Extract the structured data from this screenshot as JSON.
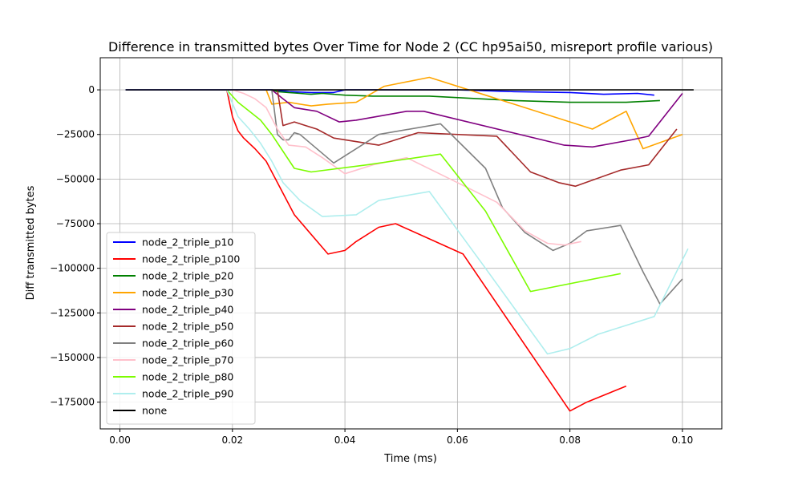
{
  "chart_data": {
    "type": "line",
    "title": "Difference in transmitted bytes Over Time for Node 2 (CC hp95ai50, misreport profile various)",
    "xlabel": "Time (ms)",
    "ylabel": "Diff transmitted bytes",
    "xlim": [
      -0.0035,
      0.107
    ],
    "ylim": [
      -190000,
      18000
    ],
    "xticks": [
      0.0,
      0.02,
      0.04,
      0.06,
      0.08,
      0.1
    ],
    "xtick_labels": [
      "0.00",
      "0.02",
      "0.04",
      "0.06",
      "0.08",
      "0.10"
    ],
    "yticks": [
      0,
      -25000,
      -50000,
      -75000,
      -100000,
      -125000,
      -150000,
      -175000
    ],
    "ytick_labels": [
      "0",
      "−25000",
      "−50000",
      "−75000",
      "−100000",
      "−125000",
      "−150000",
      "−175000"
    ],
    "grid": true,
    "legend_position": "lower-left",
    "series": [
      {
        "name": "node_2_triple_p10",
        "color": "#0000ff",
        "x": [
          0.001,
          0.027,
          0.03,
          0.034,
          0.038,
          0.04,
          0.05,
          0.06,
          0.07,
          0.08,
          0.086,
          0.092,
          0.095
        ],
        "y": [
          0,
          0,
          -1000,
          -1500,
          -1500,
          0,
          0,
          0,
          -1000,
          -1500,
          -2500,
          -2000,
          -3000
        ]
      },
      {
        "name": "node_2_triple_p100",
        "color": "#ff0000",
        "x": [
          0.019,
          0.02,
          0.021,
          0.022,
          0.024,
          0.026,
          0.031,
          0.037,
          0.04,
          0.042,
          0.046,
          0.049,
          0.061,
          0.08,
          0.083,
          0.09
        ],
        "y": [
          0,
          -15000,
          -23000,
          -27000,
          -33000,
          -40000,
          -70000,
          -92000,
          -90000,
          -85000,
          -77000,
          -75000,
          -92000,
          -180000,
          -175000,
          -166000
        ]
      },
      {
        "name": "node_2_triple_p20",
        "color": "#008000",
        "x": [
          0.027,
          0.028,
          0.03,
          0.032,
          0.034,
          0.036,
          0.04,
          0.045,
          0.055,
          0.07,
          0.08,
          0.09,
          0.096
        ],
        "y": [
          0,
          -1000,
          -1500,
          -2000,
          -2500,
          -2000,
          -3000,
          -3500,
          -3500,
          -6000,
          -7000,
          -7000,
          -6000
        ]
      },
      {
        "name": "node_2_triple_p30",
        "color": "#ffa500",
        "x": [
          0.026,
          0.027,
          0.03,
          0.034,
          0.037,
          0.042,
          0.047,
          0.055,
          0.065,
          0.084,
          0.09,
          0.093,
          0.1
        ],
        "y": [
          0,
          -8000,
          -7000,
          -9000,
          -8000,
          -7000,
          2000,
          7000,
          -3000,
          -22000,
          -12000,
          -33000,
          -25000
        ]
      },
      {
        "name": "node_2_triple_p40",
        "color": "#800080",
        "x": [
          0.027,
          0.029,
          0.031,
          0.033,
          0.035,
          0.039,
          0.042,
          0.051,
          0.054,
          0.079,
          0.084,
          0.091,
          0.094,
          0.1
        ],
        "y": [
          0,
          -5000,
          -10000,
          -11000,
          -12000,
          -18000,
          -17000,
          -12000,
          -12000,
          -31000,
          -32000,
          -28000,
          -26000,
          -2000
        ]
      },
      {
        "name": "node_2_triple_p50",
        "color": "#a52a2a",
        "x": [
          0.028,
          0.029,
          0.031,
          0.033,
          0.035,
          0.038,
          0.046,
          0.053,
          0.067,
          0.073,
          0.078,
          0.081,
          0.089,
          0.094,
          0.099
        ],
        "y": [
          0,
          -20000,
          -18000,
          -20000,
          -22000,
          -27000,
          -31000,
          -24000,
          -26000,
          -46000,
          -52000,
          -54000,
          -45000,
          -42000,
          -22000
        ]
      },
      {
        "name": "node_2_triple_p60",
        "color": "#808080",
        "x": [
          0.027,
          0.028,
          0.029,
          0.03,
          0.031,
          0.032,
          0.038,
          0.046,
          0.057,
          0.065,
          0.068,
          0.072,
          0.077,
          0.08,
          0.083,
          0.089,
          0.093,
          0.096,
          0.1
        ],
        "y": [
          0,
          -25000,
          -28000,
          -28000,
          -24000,
          -25000,
          -41000,
          -25000,
          -19000,
          -44000,
          -66000,
          -80000,
          -90000,
          -86000,
          -79000,
          -76000,
          -102000,
          -120000,
          -106000
        ]
      },
      {
        "name": "node_2_triple_p70",
        "color": "#ffc0cb",
        "x": [
          0.02,
          0.022,
          0.024,
          0.026,
          0.028,
          0.03,
          0.033,
          0.036,
          0.04,
          0.045,
          0.051,
          0.06,
          0.067,
          0.072,
          0.076,
          0.079,
          0.082
        ],
        "y": [
          0,
          -2000,
          -5000,
          -10000,
          -22000,
          -31000,
          -32000,
          -38000,
          -47000,
          -42000,
          -38000,
          -52000,
          -63000,
          -79000,
          -86000,
          -87000,
          -85000
        ]
      },
      {
        "name": "node_2_triple_p80",
        "color": "#7cfc00",
        "x": [
          0.019,
          0.021,
          0.023,
          0.025,
          0.027,
          0.031,
          0.034,
          0.044,
          0.057,
          0.065,
          0.073,
          0.089
        ],
        "y": [
          0,
          -7000,
          -12000,
          -17000,
          -25000,
          -44000,
          -46000,
          -42000,
          -36000,
          -68000,
          -113000,
          -103000
        ]
      },
      {
        "name": "node_2_triple_p90",
        "color": "#afeeee",
        "x": [
          0.019,
          0.021,
          0.023,
          0.025,
          0.027,
          0.029,
          0.032,
          0.036,
          0.042,
          0.046,
          0.055,
          0.065,
          0.076,
          0.08,
          0.085,
          0.095,
          0.101
        ],
        "y": [
          0,
          -15000,
          -22000,
          -30000,
          -40000,
          -52000,
          -62000,
          -71000,
          -70000,
          -62000,
          -57000,
          -100000,
          -148000,
          -145000,
          -137000,
          -127000,
          -89000
        ]
      },
      {
        "name": "none",
        "color": "#000000",
        "x": [
          0.001,
          0.102
        ],
        "y": [
          0,
          0
        ]
      }
    ]
  }
}
